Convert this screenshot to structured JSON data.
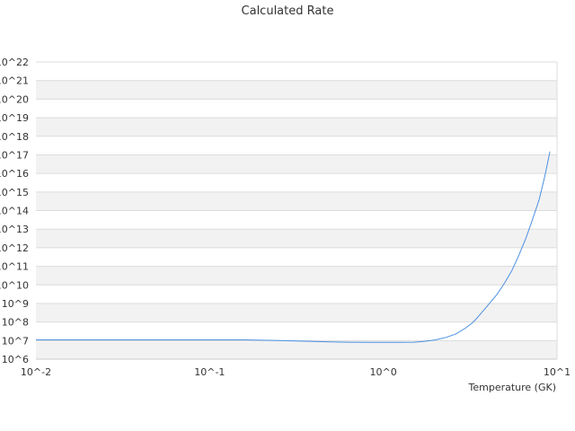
{
  "chart_data": {
    "type": "line",
    "title": "Calculated Rate",
    "xlabel": "Temperature (GK)",
    "ylabel": "",
    "x_scale": "log",
    "y_scale": "log",
    "xlim": [
      0.01,
      10
    ],
    "ylim": [
      1000000.0,
      1e+22
    ],
    "x_ticks": [
      {
        "value": 0.01,
        "label": "10^-2"
      },
      {
        "value": 0.1,
        "label": "10^-1"
      },
      {
        "value": 1,
        "label": "10^0"
      },
      {
        "value": 10,
        "label": "10^1"
      }
    ],
    "y_ticks": [
      {
        "value": 1000000.0,
        "label": "10^6"
      },
      {
        "value": 10000000.0,
        "label": "10^7"
      },
      {
        "value": 100000000.0,
        "label": "10^8"
      },
      {
        "value": 1000000000.0,
        "label": "10^9"
      },
      {
        "value": 10000000000.0,
        "label": "10^10"
      },
      {
        "value": 100000000000.0,
        "label": "10^11"
      },
      {
        "value": 1000000000000.0,
        "label": "10^12"
      },
      {
        "value": 10000000000000.0,
        "label": "10^13"
      },
      {
        "value": 100000000000000.0,
        "label": "10^14"
      },
      {
        "value": 1000000000000000.0,
        "label": "10^15"
      },
      {
        "value": 1e+16,
        "label": "10^16"
      },
      {
        "value": 1e+17,
        "label": "10^17"
      },
      {
        "value": 1e+18,
        "label": "10^18"
      },
      {
        "value": 1e+19,
        "label": "10^19"
      },
      {
        "value": 1e+20,
        "label": "10^20"
      },
      {
        "value": 1e+21,
        "label": "10^21"
      },
      {
        "value": 1e+22,
        "label": "10^22"
      }
    ],
    "grid": "horizontal alternating bands",
    "legend": "none",
    "series": [
      {
        "color": "#4a90e2",
        "x": [
          0.01,
          0.0126,
          0.0158,
          0.02,
          0.0251,
          0.0316,
          0.0398,
          0.05,
          0.063,
          0.0794,
          0.1,
          0.126,
          0.158,
          0.2,
          0.251,
          0.316,
          0.398,
          0.5,
          0.63,
          0.794,
          1.0,
          1.26,
          1.5,
          1.7,
          2.0,
          2.3,
          2.6,
          3.0,
          3.3,
          3.6,
          4.0,
          4.5,
          5.0,
          5.5,
          6.0,
          6.6,
          7.2,
          7.9,
          8.5,
          9.1
        ],
        "y": [
          11000000.0,
          11000000.0,
          11000000.0,
          11000000.0,
          11000000.0,
          11000000.0,
          11000000.0,
          11000000.0,
          11000000.0,
          11000000.0,
          11000000.0,
          11000000.0,
          11000000.0,
          10500000.0,
          10000000.0,
          9500000.0,
          9000000.0,
          8500000.0,
          8200000.0,
          8000000.0,
          8000000.0,
          8000000.0,
          8200000.0,
          9000000.0,
          11000000.0,
          15000000.0,
          22000000.0,
          50000000.0,
          100000000.0,
          250000000.0,
          800000000.0,
          3000000000.0,
          13000000000.0,
          60000000000.0,
          350000000000.0,
          3000000000000.0,
          30000000000000.0,
          400000000000000.0,
          7000000000000000.0,
          1.5e+17
        ]
      }
    ]
  },
  "colors": {
    "band": "#f2f2f2",
    "gridline": "#dcdcdc",
    "axis": "#cccccc",
    "line": "#4a90e2",
    "text": "#333333"
  }
}
